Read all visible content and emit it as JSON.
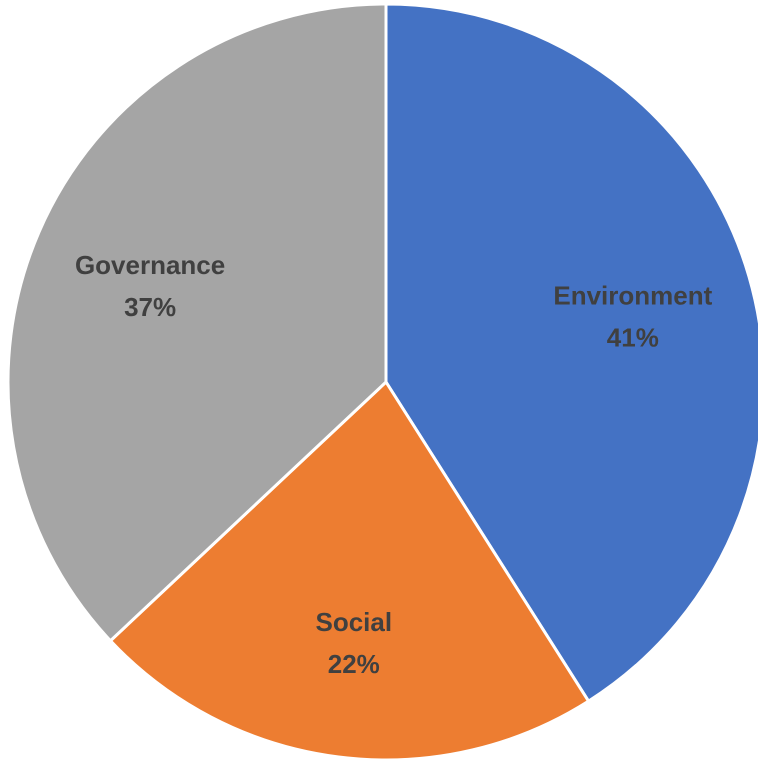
{
  "chart_data": {
    "type": "pie",
    "title": "",
    "slices": [
      {
        "label": "Environment",
        "value": 41,
        "value_label": "41%",
        "color": "#4472C4"
      },
      {
        "label": "Social",
        "value": 22,
        "value_label": "22%",
        "color": "#ED7D31"
      },
      {
        "label": "Governance",
        "value": 37,
        "value_label": "37%",
        "color": "#A5A5A5"
      }
    ],
    "start_angle": "12 o'clock",
    "direction": "clockwise",
    "legend": "none",
    "labels_inside_slices": true
  }
}
